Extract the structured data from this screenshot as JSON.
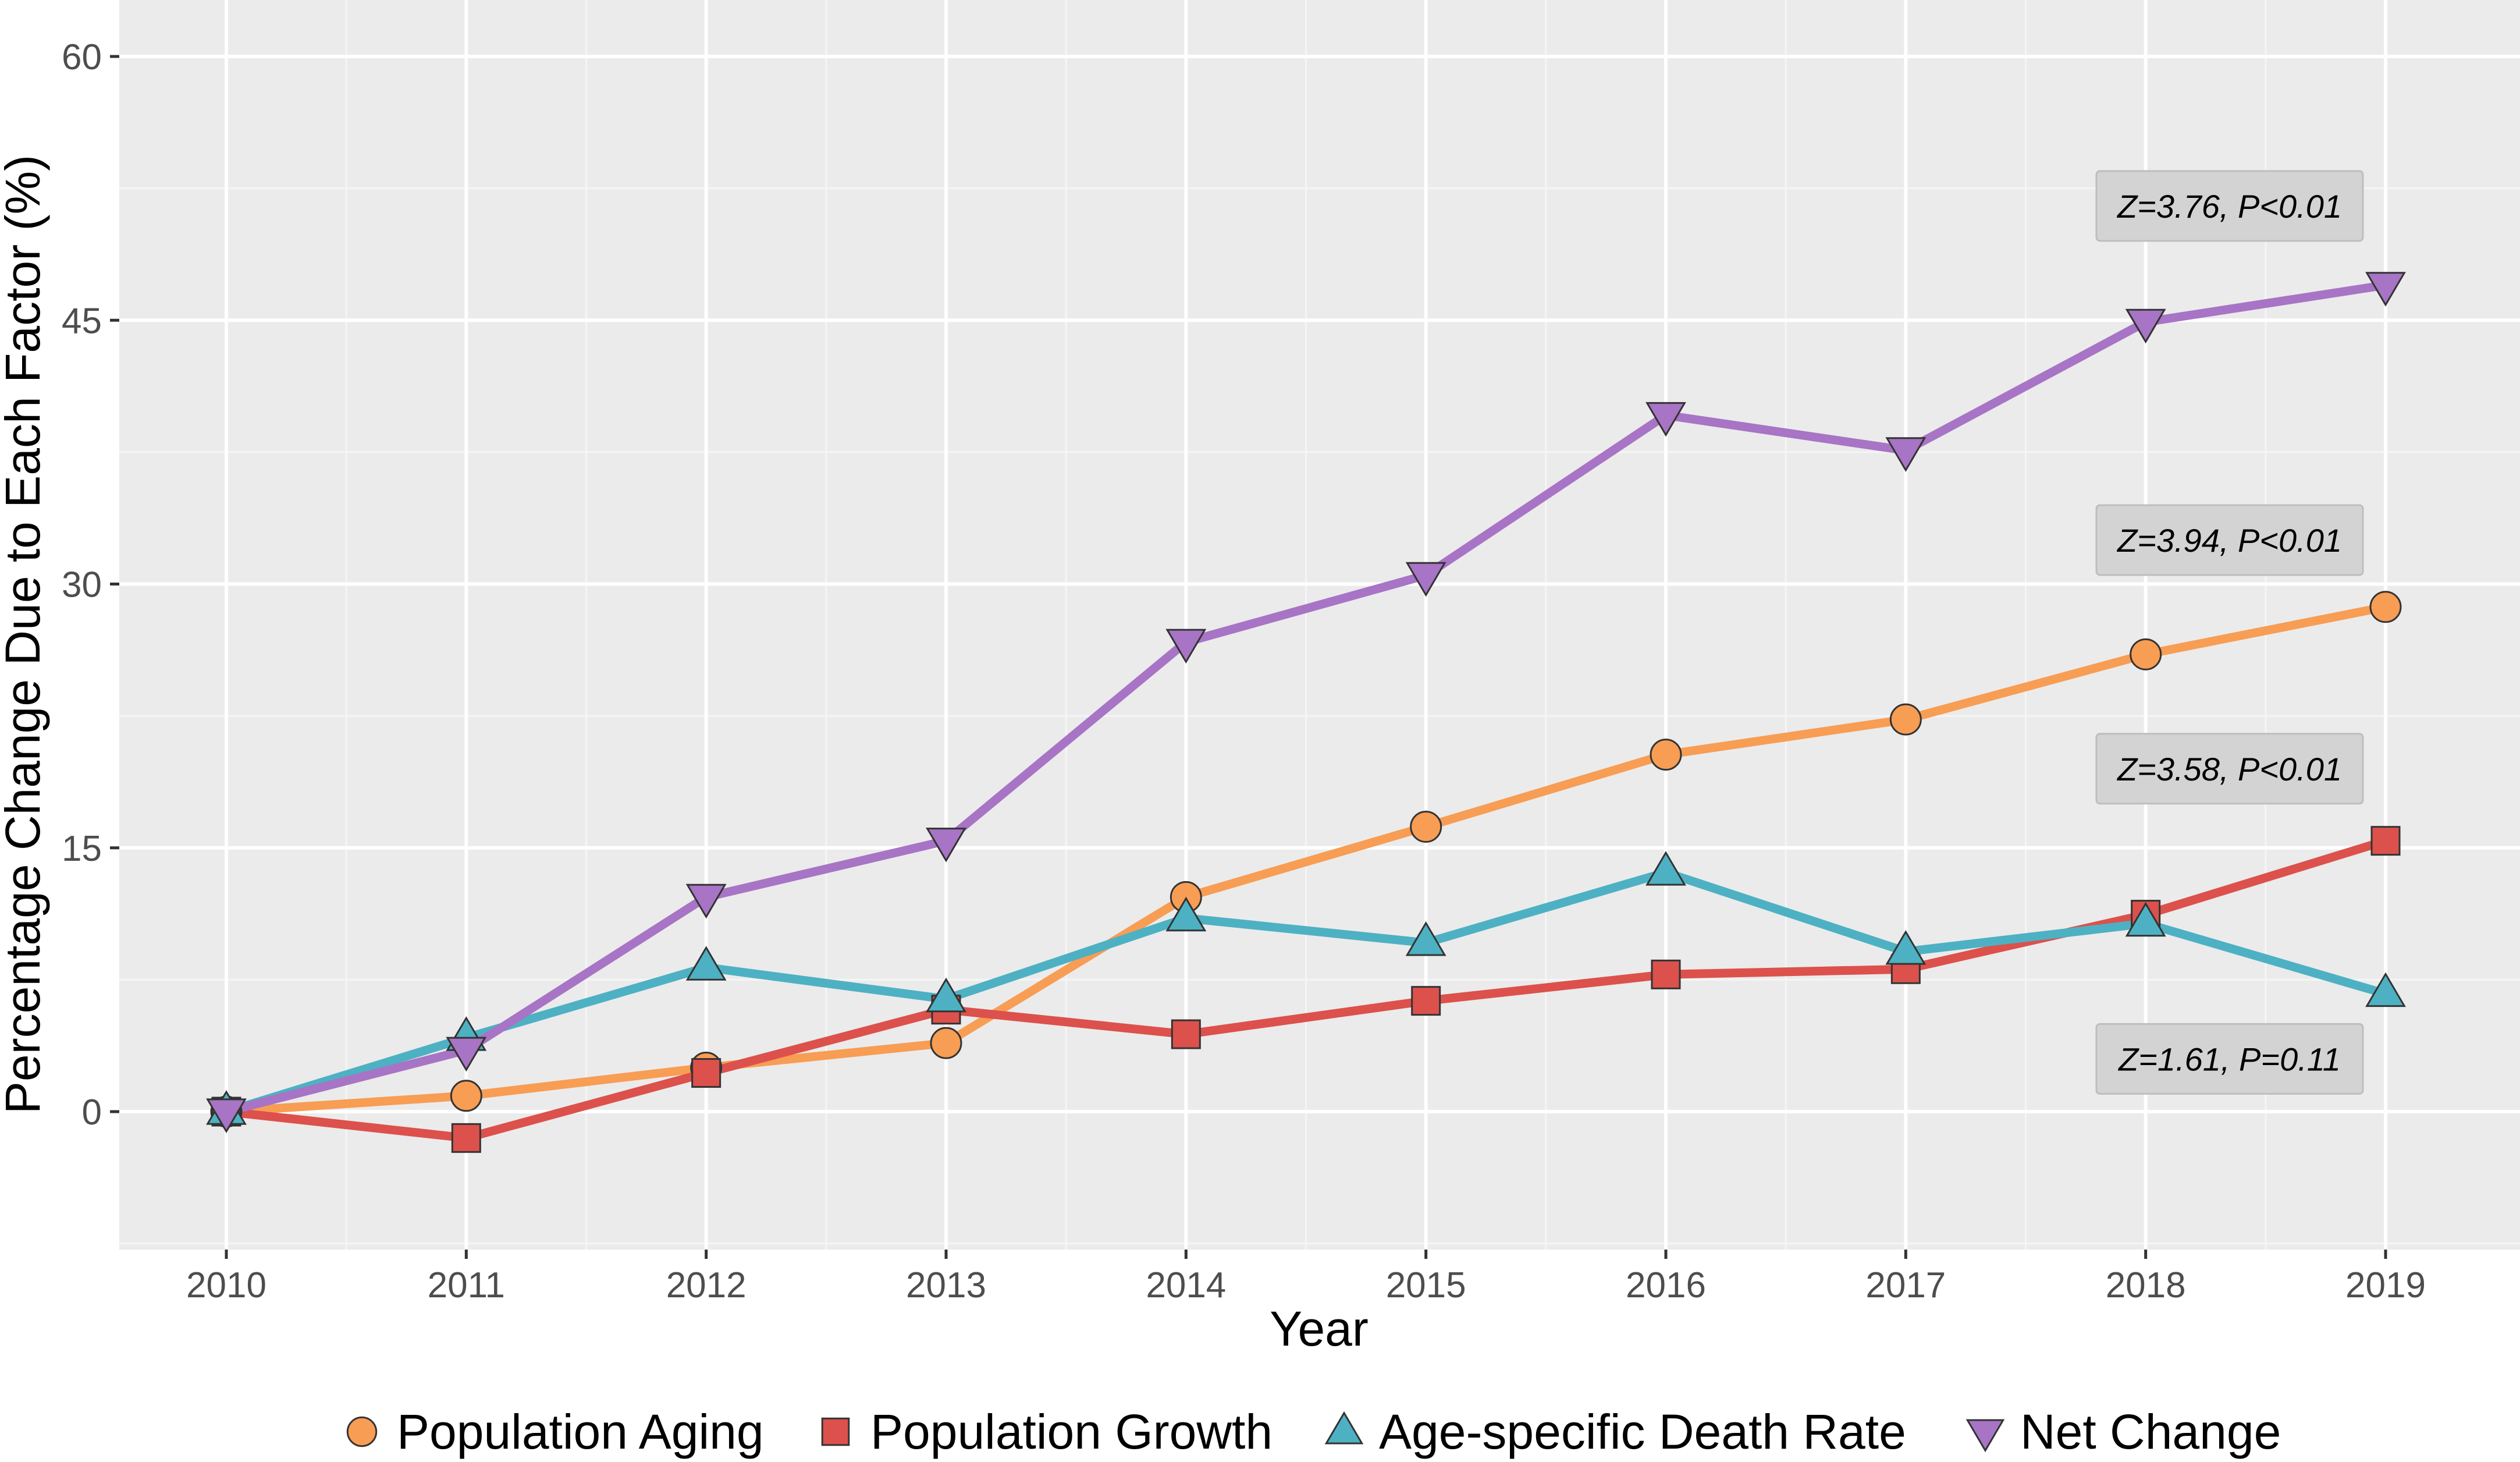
{
  "chart_data": {
    "type": "line",
    "title": "",
    "xlabel": "Year",
    "ylabel": "Percentage Change Due to Each Factor (%)",
    "x": [
      2010,
      2011,
      2012,
      2013,
      2014,
      2015,
      2016,
      2017,
      2018,
      2019
    ],
    "x_tick_labels": [
      "2010",
      "2011",
      "2012",
      "2013",
      "2014",
      "2015",
      "2016",
      "2017",
      "2018",
      "2019"
    ],
    "y_ticks": [
      0,
      15,
      30,
      45,
      60
    ],
    "y_tick_labels": [
      "0",
      "15",
      "30",
      "45",
      "60"
    ],
    "ylim": [
      -8,
      62
    ],
    "grid": true,
    "legend_position": "bottom",
    "series": [
      {
        "name": "Population Aging",
        "color": "#F89D54",
        "marker": "circle",
        "values": [
          0,
          0.9,
          2.5,
          3.9,
          12.2,
          16.2,
          20.3,
          22.3,
          26.0,
          28.7
        ]
      },
      {
        "name": "Population Growth",
        "color": "#DC514C",
        "marker": "square",
        "values": [
          0,
          -1.5,
          2.2,
          5.8,
          4.4,
          6.3,
          7.8,
          8.1,
          11.2,
          15.4
        ]
      },
      {
        "name": "Age-specific Death Rate",
        "color": "#4DB1C3",
        "marker": "triangle-up",
        "values": [
          0,
          4.2,
          8.2,
          6.4,
          11.0,
          9.6,
          13.6,
          9.1,
          10.7,
          6.7
        ]
      },
      {
        "name": "Net Change",
        "color": "#A874C5",
        "marker": "triangle-down",
        "values": [
          0,
          3.5,
          12.2,
          15.4,
          26.7,
          30.5,
          39.6,
          37.6,
          44.9,
          47.0
        ]
      }
    ],
    "annotations": [
      {
        "text": "Z=3.76, P<0.01",
        "x": 2018.35,
        "y": 51.5
      },
      {
        "text": "Z=3.94, P<0.01",
        "x": 2018.35,
        "y": 32.5
      },
      {
        "text": "Z=3.58, P<0.01",
        "x": 2018.35,
        "y": 19.5
      },
      {
        "text": "Z=1.61, P=0.11",
        "x": 2018.35,
        "y": 3.0
      }
    ]
  }
}
